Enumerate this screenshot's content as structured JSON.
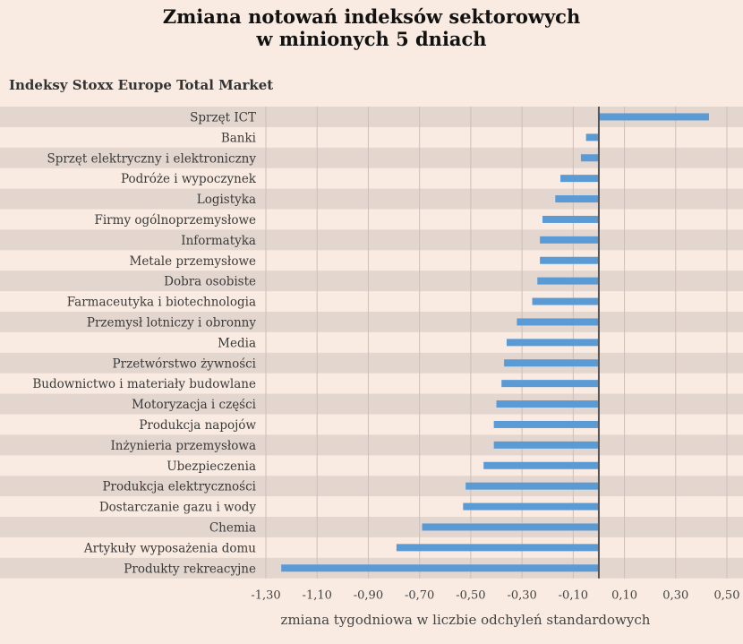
{
  "title_line1": "Zmiana notowań indeksów sektorowych",
  "title_line2": "w minionych 5 dniach",
  "subtitle": "Indeksy Stoxx Europe Total Market",
  "colors": {
    "background": "#f9ebe1",
    "band": "#e3d6cf",
    "bar": "#5b9bd5",
    "axis": "#555555"
  },
  "chart_data": {
    "type": "bar",
    "orientation": "horizontal",
    "title": "Zmiana notowań indeksów sektorowych w minionych 5 dniach",
    "subtitle": "Indeksy Stoxx Europe Total Market",
    "xlabel": "zmiana tygodniowa w liczbie odchyleń standardowych",
    "ylabel": "",
    "xlim": [
      -1.3,
      0.5
    ],
    "xticks": [
      "-1,30",
      "-1,10",
      "-0,90",
      "-0,70",
      "-0,50",
      "-0,30",
      "-0,10",
      "0,10",
      "0,30",
      "0,50"
    ],
    "xtick_values": [
      -1.3,
      -1.1,
      -0.9,
      -0.7,
      -0.5,
      -0.3,
      -0.1,
      0.1,
      0.3,
      0.5
    ],
    "grid": true,
    "categories": [
      "Sprzęt ICT",
      "Banki",
      "Sprzęt elektryczny i elektroniczny",
      "Podróże i wypoczynek",
      "Logistyka",
      "Firmy ogólnoprzemysłowe",
      "Informatyka",
      "Metale przemysłowe",
      "Dobra osobiste",
      "Farmaceutyka i biotechnologia",
      "Przemysł lotniczy i obronny",
      "Media",
      "Przetwórstwo żywności",
      "Budownictwo i materiały budowlane",
      "Motoryzacja i części",
      "Produkcja napojów",
      "Inżynieria przemysłowa",
      "Ubezpieczenia",
      "Produkcja elektryczności",
      "Dostarczanie gazu i wody",
      "Chemia",
      "Artykuły wyposażenia domu",
      "Produkty rekreacyjne"
    ],
    "values": [
      0.43,
      -0.05,
      -0.07,
      -0.15,
      -0.17,
      -0.22,
      -0.23,
      -0.23,
      -0.24,
      -0.26,
      -0.32,
      -0.36,
      -0.37,
      -0.38,
      -0.4,
      -0.41,
      -0.41,
      -0.45,
      -0.52,
      -0.53,
      -0.69,
      -0.79,
      -1.24
    ]
  }
}
